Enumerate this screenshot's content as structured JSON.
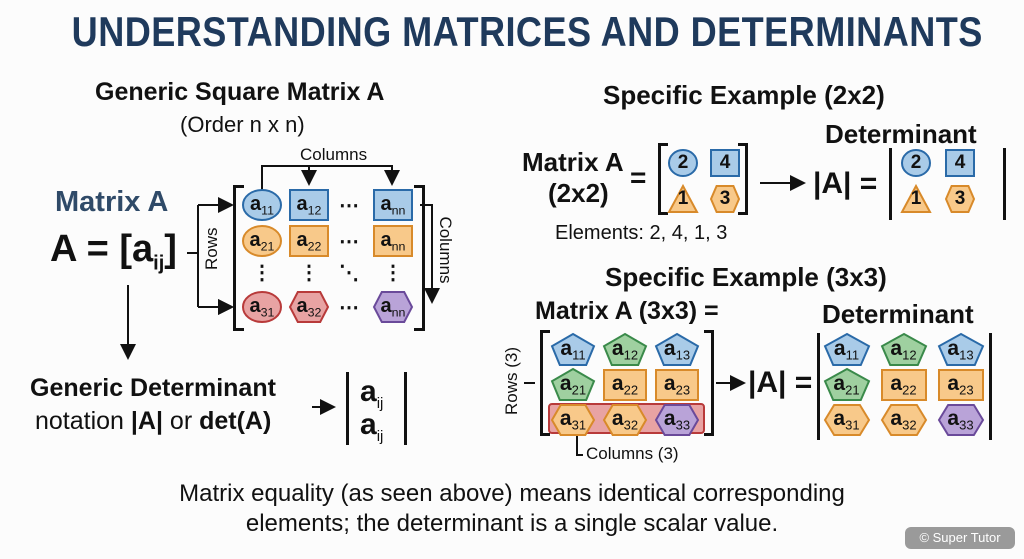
{
  "title": "UNDERSTANDING MATRICES AND DETERMINANTS",
  "colors": {
    "title": "#1f3a5c",
    "matrix_label": "#2f4a68",
    "blue": [
      "#a9cbe8",
      "#2a6aa8"
    ],
    "orange": [
      "#f8c98a",
      "#d88a2a"
    ],
    "red": [
      "#e8a3a3",
      "#b83a3a"
    ],
    "purple": [
      "#b9a3d8",
      "#6a4a9a"
    ],
    "green": [
      "#9fd0a0",
      "#3a8a4a"
    ]
  },
  "generic": {
    "heading": "Generic Square Matrix A",
    "order": "(Order n x n)",
    "matrix_label": "Matrix A",
    "notation": "A = [a",
    "notation_sub": "ij",
    "notation_end": "]",
    "columns_top": "Columns",
    "columns_side": "Columns",
    "rows": "Rows",
    "cells": [
      [
        {
          "b": "a",
          "s": "11",
          "shape": "ellipse",
          "c": "blue"
        },
        {
          "b": "a",
          "s": "12",
          "shape": "rect",
          "c": "blue"
        },
        "⋯",
        {
          "b": "a",
          "s": "nn",
          "shape": "rect",
          "c": "blue"
        }
      ],
      [
        {
          "b": "a",
          "s": "21",
          "shape": "ellipse",
          "c": "orange"
        },
        {
          "b": "a",
          "s": "22",
          "shape": "rect",
          "c": "orange"
        },
        "⋯",
        {
          "b": "a",
          "s": "nn",
          "shape": "rect",
          "c": "orange"
        }
      ],
      [
        "⋮",
        "⋮",
        "⋱",
        "⋮"
      ],
      [
        {
          "b": "a",
          "s": "31",
          "shape": "ellipse",
          "c": "red"
        },
        {
          "b": "a",
          "s": "32",
          "shape": "hexagon",
          "c": "red"
        },
        "⋯",
        {
          "b": "a",
          "s": "nn",
          "shape": "hexagon",
          "c": "purple"
        }
      ]
    ],
    "det_line1": "Generic Determinant",
    "det_line2_a": "notation ",
    "det_line2_b": "|A|",
    "det_line2_c": " or ",
    "det_line2_d": "det(A)",
    "det_cells": [
      {
        "b": "a",
        "s": "ij"
      },
      {
        "b": "a",
        "s": "ij"
      }
    ]
  },
  "example2": {
    "heading": "Specific Example (2x2)",
    "label1": "Matrix A",
    "label2": "(2x2)",
    "equals": "=",
    "elements": "Elements: 2, 4, 1, 3",
    "det_heading": "Determinant",
    "det_label": "|A| =",
    "cells": [
      [
        {
          "b": "2",
          "s": "",
          "shape": "circle",
          "c": "blue"
        },
        {
          "b": "4",
          "s": "",
          "shape": "square",
          "c": "blue"
        }
      ],
      [
        {
          "b": "1",
          "s": "",
          "shape": "triangle",
          "c": "orange"
        },
        {
          "b": "3",
          "s": "",
          "shape": "hexagon",
          "c": "orange"
        }
      ]
    ]
  },
  "example3": {
    "heading": "Specific Example (3x3)",
    "label": "Matrix A (3x3) =",
    "rows": "Rows (3)",
    "columns": "Columns (3)",
    "det_heading": "Determinant",
    "det_label": "|A| =",
    "cells": [
      [
        {
          "b": "a",
          "s": "11",
          "shape": "pentagon",
          "c": "blue"
        },
        {
          "b": "a",
          "s": "12",
          "shape": "pentagon",
          "c": "green"
        },
        {
          "b": "a",
          "s": "13",
          "shape": "pentagon",
          "c": "blue"
        }
      ],
      [
        {
          "b": "a",
          "s": "21",
          "shape": "pentagon",
          "c": "green"
        },
        {
          "b": "a",
          "s": "22",
          "shape": "rect",
          "c": "orange"
        },
        {
          "b": "a",
          "s": "23",
          "shape": "rect",
          "c": "orange"
        }
      ],
      [
        {
          "b": "a",
          "s": "31",
          "shape": "hexagon",
          "c": "orange"
        },
        {
          "b": "a",
          "s": "32",
          "shape": "hexagon",
          "c": "orange"
        },
        {
          "b": "a",
          "s": "33",
          "shape": "hexagon",
          "c": "purple"
        }
      ]
    ]
  },
  "footer": {
    "line1": "Matrix equality (as seen above) means identical corresponding",
    "line2": "elements; the determinant is a single scalar value.",
    "watermark": "© Super Tutor"
  }
}
